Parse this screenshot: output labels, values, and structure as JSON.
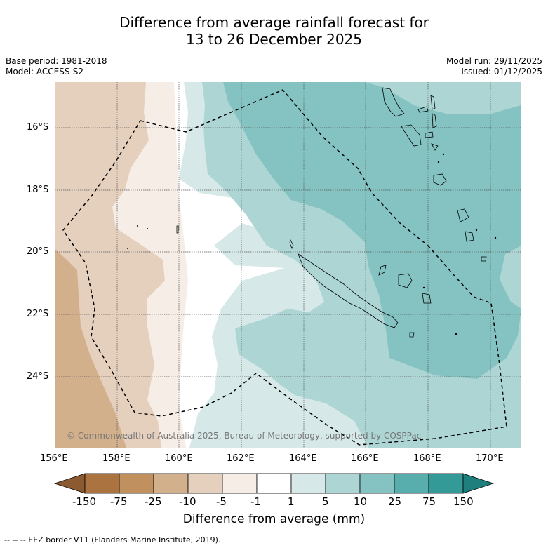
{
  "title": {
    "line1": "Difference from average rainfall forecast for",
    "line2": "13 to 26 December 2025"
  },
  "meta": {
    "base_period": "Base period: 1981-2018",
    "model": "Model: ACCESS-S2",
    "model_run": "Model run: 29/11/2025",
    "issued": "Issued: 01/12/2025"
  },
  "map": {
    "lat_labels": [
      "16°S",
      "18°S",
      "20°S",
      "22°S",
      "24°S"
    ],
    "lon_labels": [
      "156°E",
      "158°E",
      "160°E",
      "162°E",
      "164°E",
      "166°E",
      "168°E",
      "170°E"
    ],
    "copyright": "© Commonwealth of Australia 2025, Bureau of Meteorology, supported by COSPPac"
  },
  "colorbar": {
    "labels": [
      "-150",
      "-75",
      "-25",
      "-10",
      "-5",
      "-1",
      "1",
      "5",
      "10",
      "25",
      "75",
      "150"
    ],
    "colors": [
      "#8c5a30",
      "#aa733f",
      "#c0915f",
      "#d3b08c",
      "#e5d0bd",
      "#f5ede6",
      "#ffffff",
      "#d6e9e8",
      "#acd5d4",
      "#84c3c1",
      "#58aeac",
      "#339a97",
      "#1f7f7c"
    ],
    "title": "Difference from average (mm)"
  },
  "footnote": "-- -- -- EEZ border V11 (Flanders Marine Institute, 2019)."
}
